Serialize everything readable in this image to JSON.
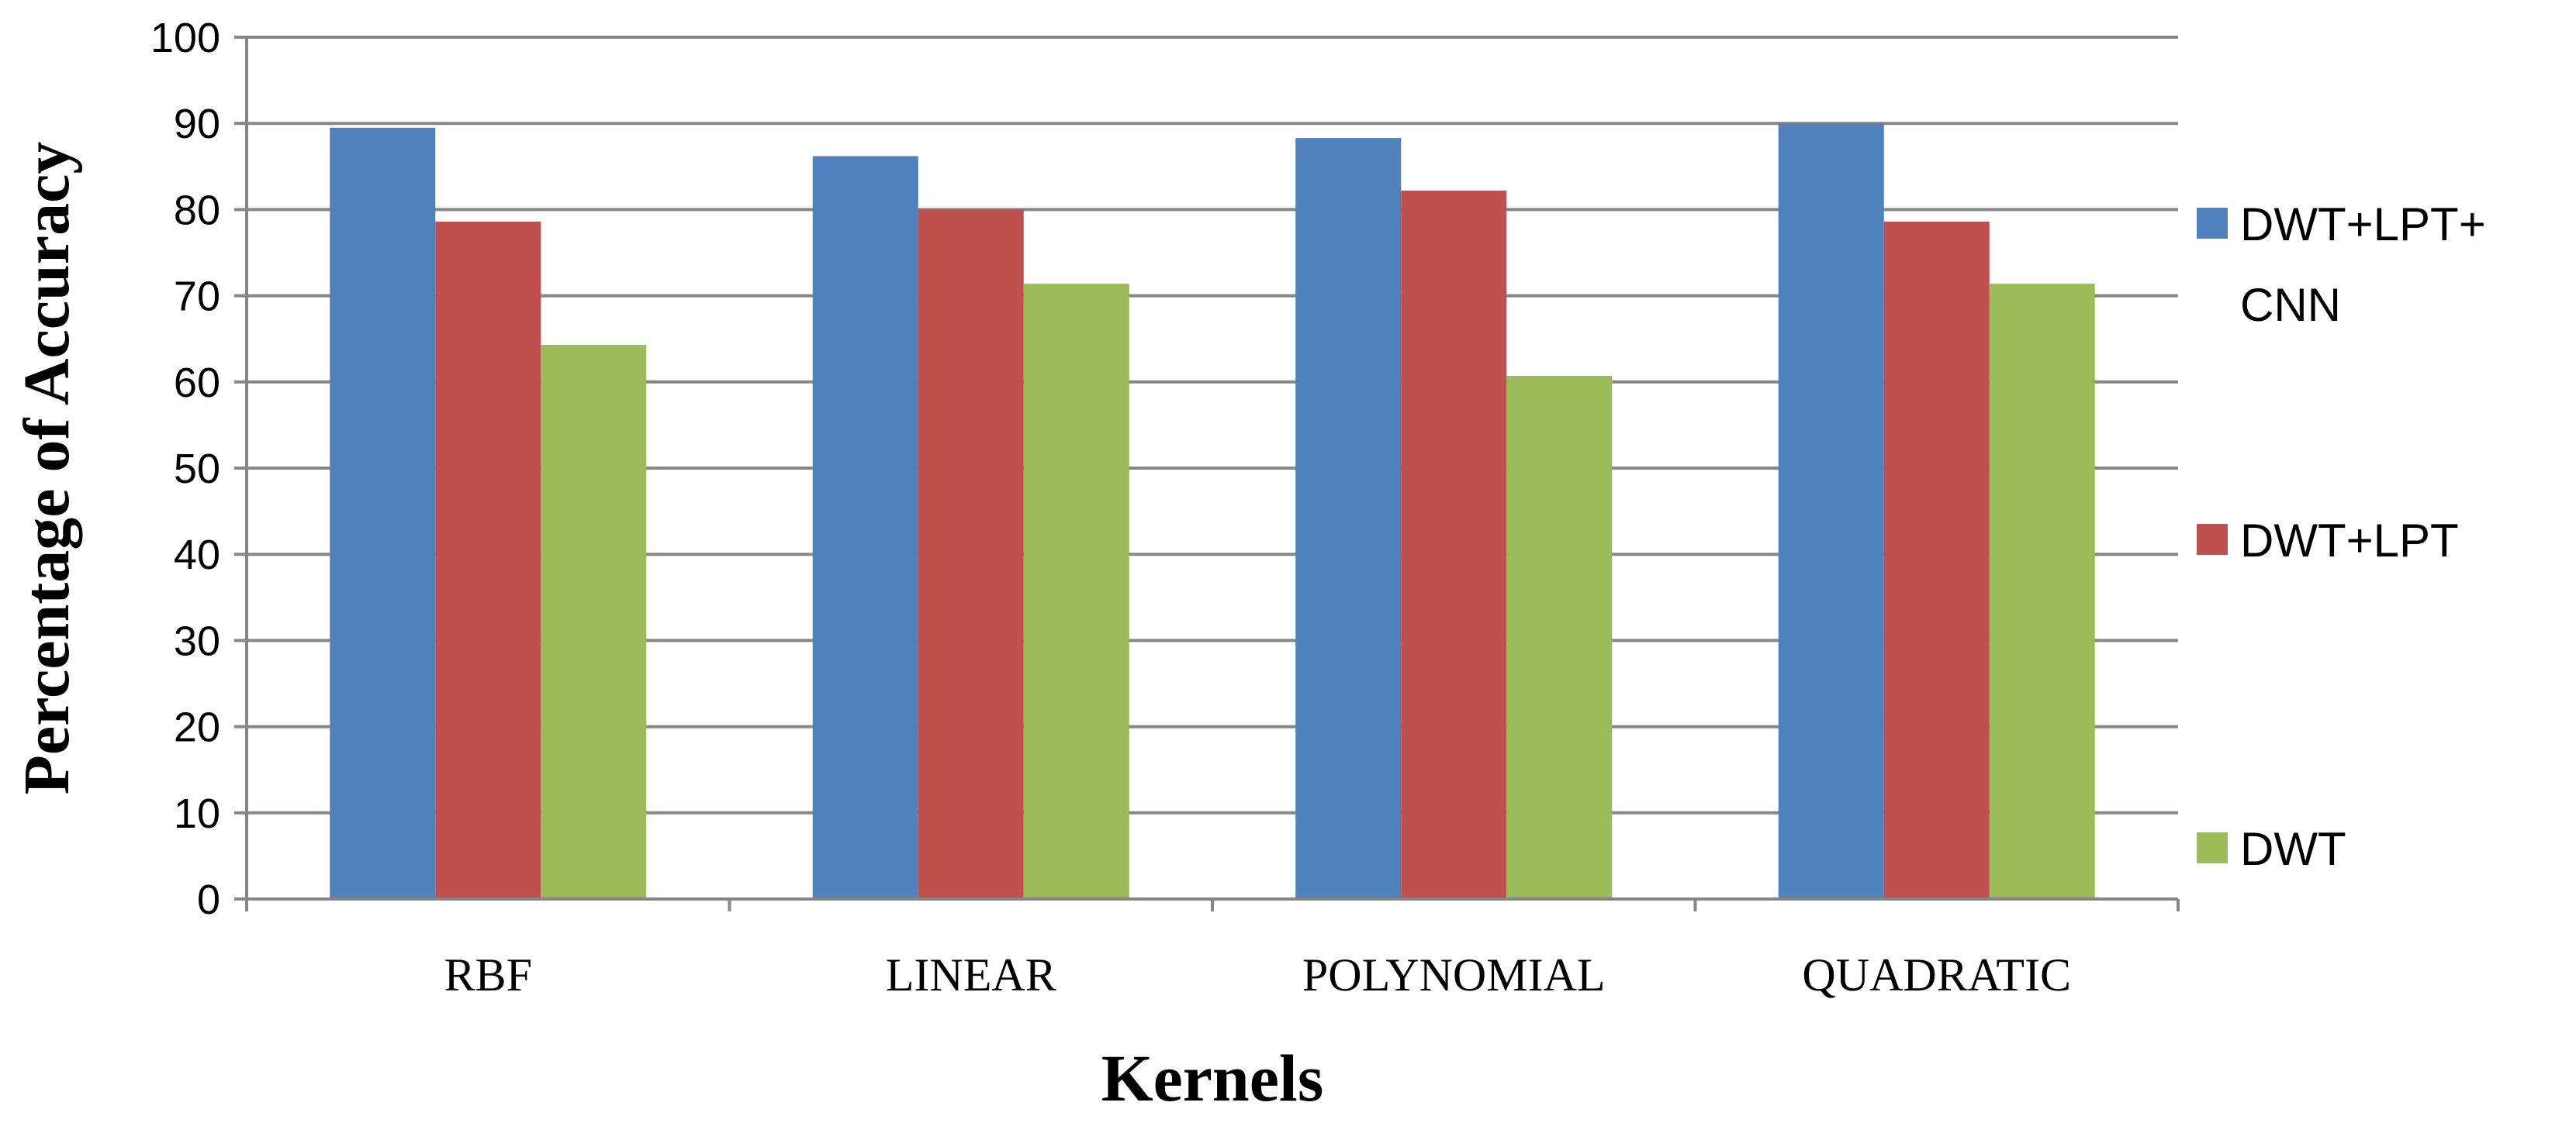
{
  "chart_data": {
    "type": "bar",
    "title": "",
    "xlabel": "Kernels",
    "ylabel": "Percentage of Accuracy",
    "categories": [
      "RBF",
      "LINEAR",
      "POLYNOMIAL",
      "QUADRATIC"
    ],
    "series": [
      {
        "name": "DWT+LPT+ CNN",
        "legend_lines": [
          "DWT+LPT+",
          "CNN"
        ],
        "color": "#4F81BD",
        "values": [
          89.5,
          86.2,
          88.3,
          90.0
        ]
      },
      {
        "name": "DWT+LPT",
        "legend_lines": [
          "DWT+LPT"
        ],
        "color": "#C0504D",
        "values": [
          78.6,
          80.0,
          82.2,
          78.6
        ]
      },
      {
        "name": "DWT",
        "legend_lines": [
          "DWT"
        ],
        "color": "#9BBB59",
        "values": [
          64.3,
          71.4,
          60.7,
          71.4
        ]
      }
    ],
    "ylim": [
      0,
      100
    ],
    "yticks": [
      0,
      10,
      20,
      30,
      40,
      50,
      60,
      70,
      80,
      90,
      100
    ],
    "grid": true,
    "legend": "right"
  }
}
